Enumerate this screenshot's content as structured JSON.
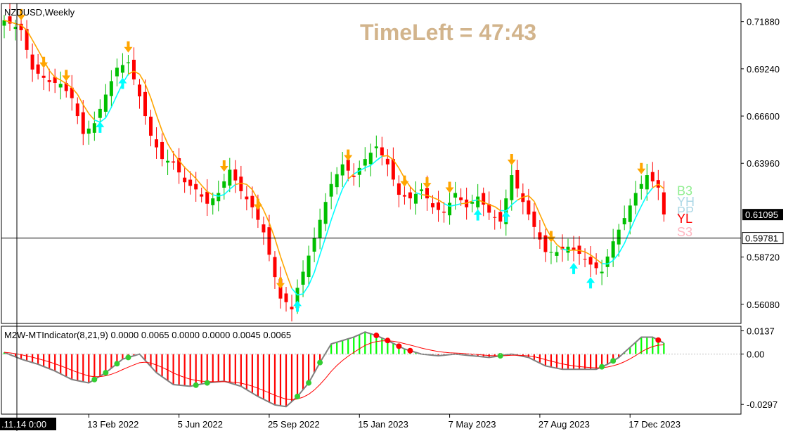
{
  "window": {
    "symbol_title": "NZDUSD,Weekly",
    "timeleft_label": "TimeLeft = 47:43"
  },
  "price_panel": {
    "y_ticks": [
      "0.71880",
      "0.69240",
      "0.66600",
      "0.63960",
      "0.61095",
      "0.58720",
      "0.56080"
    ],
    "tick_values": [
      0.7188,
      0.6924,
      0.666,
      0.6396,
      0.61095,
      0.5872,
      0.5608
    ],
    "ylim": [
      0.5505,
      0.7285
    ],
    "current_price_label": "0.61095",
    "crosshair_price_label": "0.59781",
    "crosshair_price": 0.59781,
    "level_labels": [
      {
        "text": "B3",
        "color": "#90ee90",
        "price": 0.6245
      },
      {
        "text": "YH",
        "color": "#add8e6",
        "price": 0.6185
      },
      {
        "text": "PP",
        "color": "#add8e6",
        "price": 0.613
      },
      {
        "text": "YL",
        "color": "#ff0000",
        "price": 0.609
      },
      {
        "text": "S3",
        "color": "#ffb6c1",
        "price": 0.6015
      }
    ]
  },
  "indicator_panel": {
    "header": "M2W-MTIndicator(8,21,9) 0.0000 0.0065 0.0000 0.0000 0.0045 0.0065",
    "y_ticks": [
      "0.0137",
      "0.00",
      "-0.0297"
    ],
    "tick_values": [
      0.0137,
      0.0,
      -0.0297
    ],
    "ylim": [
      -0.035,
      0.016
    ]
  },
  "x_axis": {
    "cursor_label": ".11.14 0:00",
    "labels": [
      "13 Feb 2022",
      "5 Jun 2022",
      "25 Sep 2022",
      "15 Jan 2023",
      "7 May 2023",
      "27 Aug 2023",
      "17 Dec 2023"
    ],
    "label_bar_index": [
      15,
      31,
      47,
      63,
      79,
      95,
      111
    ]
  },
  "colors": {
    "bull": "#00c000",
    "bear": "#ff0000",
    "trail_up": "#00ffff",
    "trail_down": "#ffa500",
    "hist_pos": "#00ff00",
    "hist_neg": "#ff0000",
    "signal": "#ff0000",
    "dot_green": "#32cd32",
    "dot_red": "#ff0000"
  },
  "chart_data": {
    "type": "candlestick",
    "title": "NZDUSD,Weekly",
    "anchors": [
      [
        0,
        0.7195
      ],
      [
        3,
        0.714
      ],
      [
        5,
        0.692
      ],
      [
        8,
        0.685
      ],
      [
        10,
        0.684
      ],
      [
        12,
        0.676
      ],
      [
        14,
        0.656
      ],
      [
        16,
        0.662
      ],
      [
        18,
        0.678
      ],
      [
        20,
        0.693
      ],
      [
        22,
        0.696
      ],
      [
        24,
        0.677
      ],
      [
        26,
        0.655
      ],
      [
        28,
        0.642
      ],
      [
        30,
        0.64
      ],
      [
        32,
        0.629
      ],
      [
        34,
        0.625
      ],
      [
        36,
        0.617
      ],
      [
        38,
        0.623
      ],
      [
        40,
        0.636
      ],
      [
        42,
        0.624
      ],
      [
        44,
        0.615
      ],
      [
        46,
        0.601
      ],
      [
        48,
        0.576
      ],
      [
        49,
        0.564
      ],
      [
        50,
        0.562
      ],
      [
        51,
        0.558
      ],
      [
        52,
        0.57
      ],
      [
        54,
        0.588
      ],
      [
        56,
        0.608
      ],
      [
        58,
        0.628
      ],
      [
        60,
        0.639
      ],
      [
        62,
        0.632
      ],
      [
        64,
        0.642
      ],
      [
        66,
        0.649
      ],
      [
        68,
        0.639
      ],
      [
        70,
        0.622
      ],
      [
        72,
        0.62
      ],
      [
        74,
        0.625
      ],
      [
        76,
        0.615
      ],
      [
        78,
        0.612
      ],
      [
        80,
        0.623
      ],
      [
        82,
        0.615
      ],
      [
        84,
        0.621
      ],
      [
        86,
        0.612
      ],
      [
        88,
        0.607
      ],
      [
        90,
        0.633
      ],
      [
        92,
        0.618
      ],
      [
        94,
        0.604
      ],
      [
        96,
        0.59
      ],
      [
        98,
        0.59
      ],
      [
        100,
        0.593
      ],
      [
        102,
        0.589
      ],
      [
        104,
        0.583
      ],
      [
        106,
        0.579
      ],
      [
        108,
        0.596
      ],
      [
        110,
        0.609
      ],
      [
        112,
        0.623
      ],
      [
        114,
        0.633
      ],
      [
        116,
        0.626
      ],
      [
        117,
        0.611
      ]
    ],
    "up_arrow_bars": [
      17,
      21,
      52,
      84,
      89,
      101,
      104
    ],
    "down_arrow_bars": [
      3,
      7,
      11,
      22,
      39,
      45,
      49,
      61,
      71,
      75,
      79,
      90,
      97,
      113
    ],
    "indicator_anchors": [
      [
        0,
        0.001
      ],
      [
        3,
        -0.003
      ],
      [
        6,
        -0.006
      ],
      [
        9,
        -0.01
      ],
      [
        12,
        -0.015
      ],
      [
        15,
        -0.017
      ],
      [
        18,
        -0.011
      ],
      [
        21,
        -0.003
      ],
      [
        24,
        0.0
      ],
      [
        27,
        -0.011
      ],
      [
        30,
        -0.018
      ],
      [
        33,
        -0.019
      ],
      [
        36,
        -0.017
      ],
      [
        39,
        -0.016
      ],
      [
        42,
        -0.019
      ],
      [
        45,
        -0.025
      ],
      [
        48,
        -0.03
      ],
      [
        50,
        -0.031
      ],
      [
        52,
        -0.025
      ],
      [
        54,
        -0.017
      ],
      [
        56,
        -0.005
      ],
      [
        58,
        0.006
      ],
      [
        62,
        0.01
      ],
      [
        64,
        0.013
      ],
      [
        66,
        0.011
      ],
      [
        68,
        0.008
      ],
      [
        71,
        0.003
      ],
      [
        74,
        0.0
      ],
      [
        77,
        -0.001
      ],
      [
        80,
        0.0
      ],
      [
        83,
        -0.001
      ],
      [
        86,
        -0.002
      ],
      [
        90,
        0.0
      ],
      [
        93,
        -0.002
      ],
      [
        96,
        -0.007
      ],
      [
        99,
        -0.009
      ],
      [
        102,
        -0.009
      ],
      [
        105,
        -0.009
      ],
      [
        107,
        -0.006
      ],
      [
        109,
        -0.002
      ],
      [
        111,
        0.004
      ],
      [
        113,
        0.01
      ],
      [
        115,
        0.01
      ],
      [
        117,
        0.0065
      ]
    ]
  }
}
